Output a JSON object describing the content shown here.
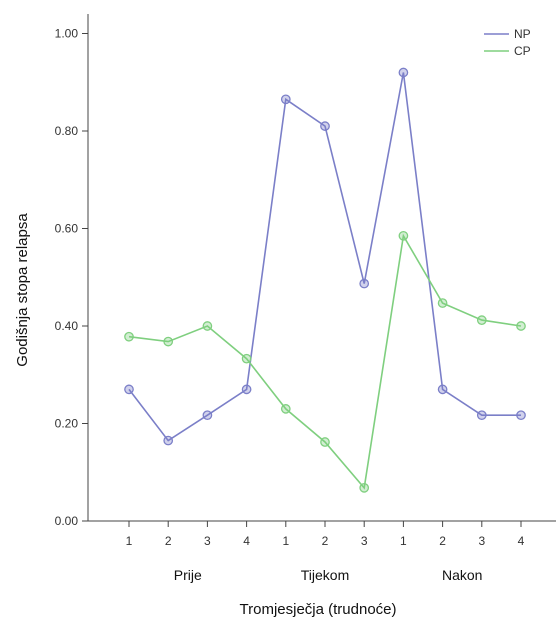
{
  "chart_data": {
    "type": "line",
    "xlabel": "Tromjesječja (trudnoće)",
    "ylabel": "Godišnja stopa relapsa",
    "ylim": [
      0,
      1.04
    ],
    "y_ticks": [
      "0.00",
      "0.20",
      "0.40",
      "0.60",
      "0.80",
      "1.00"
    ],
    "y_tick_values": [
      0,
      0.2,
      0.4,
      0.6,
      0.8,
      1.0
    ],
    "categories": [
      "1",
      "2",
      "3",
      "4",
      "1",
      "2",
      "3",
      "1",
      "2",
      "3",
      "4"
    ],
    "groups": [
      {
        "label": "Prije",
        "span": [
          0,
          3
        ]
      },
      {
        "label": "Tijekom",
        "span": [
          4,
          6
        ]
      },
      {
        "label": "Nakon",
        "span": [
          7,
          10
        ]
      }
    ],
    "legend_position": "top-right",
    "grid": false,
    "series": [
      {
        "name": "NP",
        "color": "#7b7fc8",
        "values": [
          0.27,
          0.165,
          0.217,
          0.27,
          0.865,
          0.81,
          0.487,
          0.92,
          0.27,
          0.217,
          0.217
        ]
      },
      {
        "name": "CP",
        "color": "#7fcf7f",
        "values": [
          0.378,
          0.368,
          0.4,
          0.333,
          0.23,
          0.162,
          0.068,
          0.585,
          0.447,
          0.412,
          0.4
        ]
      }
    ]
  }
}
